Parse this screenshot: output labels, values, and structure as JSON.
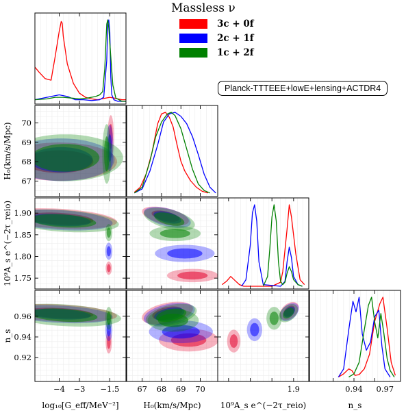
{
  "legend": {
    "title": "Massless ν",
    "entries": [
      {
        "label": "3c + 0f",
        "color": "#ff0000"
      },
      {
        "label": "2c + 1f",
        "color": "#0000ff"
      },
      {
        "label": "1c + 2f",
        "color": "#008000"
      }
    ]
  },
  "dataset_label": "Planck-TTTEEE+lowE+lensing+ACTDR4",
  "colors": {
    "cases": [
      "#ff0000",
      "#0000ff",
      "#008000"
    ],
    "posterior_2d": [
      "#e4002b",
      "#0000ff",
      "#008000"
    ]
  },
  "chart_data": {
    "type": "corner",
    "grid": true,
    "parameters": [
      {
        "name": "log10[Geff/MeV^-2]",
        "label": "log₁₀[G_eff/MeV⁻²]",
        "range": [
          -5.2,
          -0.7
        ],
        "ticks": [
          -4,
          -3,
          -1.5
        ],
        "tick_labels": [
          "−4",
          "−3",
          "−1.5"
        ]
      },
      {
        "name": "H0",
        "label": "H₀(km/s/Mpc)",
        "range": [
          66.2,
          70.9
        ],
        "ticks": [
          67,
          68,
          69,
          70
        ],
        "tick_labels": [
          "67",
          "68",
          "69",
          "70"
        ]
      },
      {
        "name": "1e9 As e^-2tau",
        "label": "10⁹A_s e^(−2τ_reio)",
        "range": [
          1.725,
          1.935
        ],
        "ticks": [
          1.75,
          1.8,
          1.85,
          1.9
        ],
        "tick_labels": [
          "1.75",
          "1.80",
          "1.85",
          "1.90"
        ],
        "bottom_ticks": [
          1.9
        ],
        "bottom_tick_labels": [
          "1.9"
        ]
      },
      {
        "name": "ns",
        "label": "n_s",
        "range": [
          0.897,
          0.985
        ],
        "ticks": [
          0.92,
          0.94,
          0.96
        ],
        "tick_labels": [
          "0.92",
          "0.94",
          "0.96"
        ],
        "bottom_ticks": [
          0.94,
          0.97
        ],
        "bottom_tick_labels": [
          "0.94",
          "0.97"
        ]
      }
    ],
    "series": [
      {
        "name": "3c + 0f",
        "marginals": [
          {
            "x": [
              -5.2,
              -5.0,
              -4.7,
              -4.4,
              -4.2,
              -4.0,
              -3.9,
              -3.85,
              -3.8,
              -3.6,
              -3.3,
              -3.0,
              -2.7,
              -2.4,
              -2.1,
              -1.9,
              -1.7,
              -1.5,
              -1.3,
              -1.1,
              -0.9,
              -0.7
            ],
            "y": [
              0.42,
              0.36,
              0.28,
              0.26,
              0.55,
              0.86,
              0.98,
              0.96,
              0.8,
              0.46,
              0.22,
              0.1,
              0.05,
              0.03,
              0.02,
              0.03,
              0.04,
              0.05,
              0.04,
              0.03,
              0.02,
              0.02
            ]
          },
          {
            "x": [
              66.6,
              66.9,
              67.2,
              67.5,
              67.8,
              68.0,
              68.2,
              68.4,
              68.6,
              68.8,
              69.0,
              69.2,
              69.5,
              69.8,
              70.1,
              70.4
            ],
            "y": [
              0.02,
              0.08,
              0.24,
              0.5,
              0.86,
              0.98,
              1.0,
              0.94,
              0.82,
              0.6,
              0.4,
              0.28,
              0.16,
              0.08,
              0.03,
              0.01
            ]
          },
          {
            "x": [
              1.735,
              1.745,
              1.755,
              1.765,
              1.775,
              1.785,
              1.85,
              1.87,
              1.875,
              1.885,
              1.89,
              1.895,
              1.905,
              1.915,
              1.925
            ],
            "y": [
              0.02,
              0.06,
              0.12,
              0.07,
              0.02,
              0.0,
              0.0,
              0.05,
              0.18,
              0.7,
              1.0,
              0.85,
              0.4,
              0.08,
              0.02
            ]
          },
          {
            "x": [
              0.925,
              0.93,
              0.935,
              0.938,
              0.941,
              0.945,
              0.95,
              0.955,
              0.96,
              0.965,
              0.968,
              0.972,
              0.976,
              0.98
            ],
            "y": [
              0.02,
              0.06,
              0.12,
              0.1,
              0.04,
              0.05,
              0.12,
              0.3,
              0.7,
              0.92,
              1.0,
              0.62,
              0.2,
              0.04
            ]
          }
        ],
        "contours": [
          {
            "x": 0,
            "y": 1,
            "c": [
              -4.0,
              68.0
            ],
            "s": [
              1.3,
              0.45
            ],
            "rho": 0.0
          },
          {
            "x": 0,
            "y": 1,
            "c": [
              -1.45,
              69.3
            ],
            "s": [
              0.07,
              0.5
            ],
            "rho": 0.0
          },
          {
            "x": 0,
            "y": 2,
            "c": [
              -4.0,
              1.887
            ],
            "s": [
              1.3,
              0.011
            ],
            "rho": -0.3
          },
          {
            "x": 0,
            "y": 2,
            "c": [
              -1.55,
              1.773
            ],
            "s": [
              0.07,
              0.007
            ],
            "rho": 0.0
          },
          {
            "x": 1,
            "y": 2,
            "c": [
              68.2,
              1.893
            ],
            "s": [
              0.55,
              0.01
            ],
            "rho": -0.5
          },
          {
            "x": 1,
            "y": 2,
            "c": [
              69.6,
              1.756
            ],
            "s": [
              0.6,
              0.007
            ],
            "rho": 0.0
          },
          {
            "x": 0,
            "y": 3,
            "c": [
              -4.0,
              0.963
            ],
            "s": [
              1.3,
              0.004
            ],
            "rho": -0.3
          },
          {
            "x": 0,
            "y": 3,
            "c": [
              -1.55,
              0.935
            ],
            "s": [
              0.07,
              0.005
            ],
            "rho": 0.0
          },
          {
            "x": 1,
            "y": 3,
            "c": [
              68.3,
              0.963
            ],
            "s": [
              0.6,
              0.005
            ],
            "rho": 0.4
          },
          {
            "x": 1,
            "y": 3,
            "c": [
              69.4,
              0.937
            ],
            "s": [
              0.7,
              0.005
            ],
            "rho": 0.0
          },
          {
            "x": 2,
            "y": 3,
            "c": [
              1.89,
              0.965
            ],
            "s": [
              0.01,
              0.004
            ],
            "rho": 0.4
          },
          {
            "x": 2,
            "y": 3,
            "c": [
              1.762,
              0.936
            ],
            "s": [
              0.007,
              0.005
            ],
            "rho": 0.0
          }
        ]
      },
      {
        "name": "2c + 1f",
        "marginals": [
          {
            "x": [
              -5.2,
              -4.8,
              -4.4,
              -4.0,
              -3.6,
              -3.2,
              -2.8,
              -2.4,
              -2.0,
              -1.8,
              -1.65,
              -1.6,
              -1.55,
              -1.5,
              -1.45,
              -1.4,
              -1.3,
              -1.1,
              -0.7
            ],
            "y": [
              0.02,
              0.04,
              0.06,
              0.08,
              0.06,
              0.02,
              0.02,
              0.01,
              0.02,
              0.05,
              0.5,
              0.95,
              1.0,
              0.85,
              0.3,
              0.08,
              0.02,
              0.0,
              0.0
            ]
          },
          {
            "x": [
              66.6,
              67.0,
              67.4,
              67.8,
              68.1,
              68.4,
              68.7,
              69.0,
              69.3,
              69.6,
              69.9,
              70.2,
              70.5,
              70.8
            ],
            "y": [
              0.01,
              0.06,
              0.28,
              0.6,
              0.88,
              0.98,
              1.0,
              0.95,
              0.86,
              0.7,
              0.48,
              0.24,
              0.08,
              0.01
            ]
          },
          {
            "x": [
              1.78,
              1.79,
              1.8,
              1.805,
              1.81,
              1.815,
              1.82,
              1.83,
              1.87,
              1.88,
              1.885,
              1.89,
              1.895,
              1.9,
              1.91,
              1.92
            ],
            "y": [
              0.0,
              0.08,
              0.5,
              0.9,
              1.0,
              0.8,
              0.3,
              0.02,
              0.0,
              0.06,
              0.3,
              0.48,
              0.35,
              0.12,
              0.02,
              0.0
            ]
          },
          {
            "x": [
              0.925,
              0.93,
              0.935,
              0.939,
              0.942,
              0.945,
              0.948,
              0.952,
              0.956,
              0.96,
              0.964,
              0.967,
              0.97,
              0.975
            ],
            "y": [
              0.02,
              0.12,
              0.6,
              0.95,
              0.82,
              1.0,
              0.55,
              0.35,
              0.45,
              0.76,
              0.84,
              0.4,
              0.12,
              0.02
            ]
          }
        ],
        "contours": [
          {
            "x": 0,
            "y": 1,
            "c": [
              -3.9,
              68.1
            ],
            "s": [
              1.2,
              0.5
            ],
            "rho": 0.0
          },
          {
            "x": 0,
            "y": 1,
            "c": [
              -1.5,
              68.7
            ],
            "s": [
              0.08,
              0.55
            ],
            "rho": 0.0
          },
          {
            "x": 0,
            "y": 2,
            "c": [
              -4.0,
              1.884
            ],
            "s": [
              1.2,
              0.011
            ],
            "rho": -0.3
          },
          {
            "x": 0,
            "y": 2,
            "c": [
              -1.55,
              1.812
            ],
            "s": [
              0.08,
              0.009
            ],
            "rho": 0.0
          },
          {
            "x": 1,
            "y": 2,
            "c": [
              68.3,
              1.89
            ],
            "s": [
              0.55,
              0.011
            ],
            "rho": -0.5
          },
          {
            "x": 1,
            "y": 2,
            "c": [
              69.2,
              1.807
            ],
            "s": [
              0.7,
              0.009
            ],
            "rho": 0.0
          },
          {
            "x": 0,
            "y": 3,
            "c": [
              -4.0,
              0.962
            ],
            "s": [
              1.2,
              0.004
            ],
            "rho": -0.3
          },
          {
            "x": 0,
            "y": 3,
            "c": [
              -1.55,
              0.947
            ],
            "s": [
              0.08,
              0.005
            ],
            "rho": 0.0
          },
          {
            "x": 1,
            "y": 3,
            "c": [
              68.4,
              0.962
            ],
            "s": [
              0.6,
              0.005
            ],
            "rho": 0.4
          },
          {
            "x": 1,
            "y": 3,
            "c": [
              69.0,
              0.945
            ],
            "s": [
              0.75,
              0.005
            ],
            "rho": 0.0
          },
          {
            "x": 2,
            "y": 3,
            "c": [
              1.89,
              0.964
            ],
            "s": [
              0.01,
              0.004
            ],
            "rho": 0.4
          },
          {
            "x": 2,
            "y": 3,
            "c": [
              1.81,
              0.947
            ],
            "s": [
              0.008,
              0.005
            ],
            "rho": 0.0
          }
        ]
      },
      {
        "name": "1c + 2f",
        "marginals": [
          {
            "x": [
              -5.2,
              -4.6,
              -4.2,
              -3.8,
              -3.4,
              -3.0,
              -2.6,
              -2.2,
              -2.0,
              -1.85,
              -1.75,
              -1.65,
              -1.6,
              -1.55,
              -1.45,
              -1.35,
              -1.2,
              -0.9,
              -0.7
            ],
            "y": [
              0.02,
              0.03,
              0.05,
              0.05,
              0.04,
              0.03,
              0.04,
              0.06,
              0.08,
              0.12,
              0.4,
              0.95,
              1.0,
              0.9,
              0.55,
              0.2,
              0.04,
              0.0,
              0.0
            ]
          },
          {
            "x": [
              66.6,
              67.0,
              67.4,
              67.7,
              68.0,
              68.3,
              68.5,
              68.7,
              69.0,
              69.3,
              69.6,
              69.9,
              70.2,
              70.5
            ],
            "y": [
              0.01,
              0.08,
              0.4,
              0.7,
              0.88,
              0.98,
              1.0,
              0.96,
              0.8,
              0.55,
              0.3,
              0.12,
              0.04,
              0.01
            ]
          },
          {
            "x": [
              1.83,
              1.84,
              1.845,
              1.85,
              1.855,
              1.86,
              1.865,
              1.87,
              1.875,
              1.88,
              1.885,
              1.89,
              1.895,
              1.9,
              1.91,
              1.92
            ],
            "y": [
              0.0,
              0.12,
              0.45,
              0.85,
              1.0,
              0.8,
              0.3,
              0.06,
              0.02,
              0.05,
              0.16,
              0.24,
              0.18,
              0.08,
              0.02,
              0.0
            ]
          },
          {
            "x": [
              0.935,
              0.94,
              0.945,
              0.95,
              0.954,
              0.957,
              0.96,
              0.963,
              0.966,
              0.969,
              0.972,
              0.975,
              0.979
            ],
            "y": [
              0.02,
              0.06,
              0.2,
              0.6,
              0.9,
              1.0,
              0.7,
              0.5,
              0.8,
              0.55,
              0.25,
              0.1,
              0.02
            ]
          }
        ],
        "contours": [
          {
            "x": 0,
            "y": 1,
            "c": [
              -3.7,
              68.2
            ],
            "s": [
              1.3,
              0.55
            ],
            "rho": 0.0
          },
          {
            "x": 0,
            "y": 1,
            "c": [
              -1.65,
              68.4
            ],
            "s": [
              0.1,
              0.7
            ],
            "rho": 0.0
          },
          {
            "x": 0,
            "y": 2,
            "c": [
              -3.8,
              1.882
            ],
            "s": [
              1.25,
              0.012
            ],
            "rho": -0.3
          },
          {
            "x": 0,
            "y": 2,
            "c": [
              -1.55,
              1.855
            ],
            "s": [
              0.08,
              0.009
            ],
            "rho": 0.0
          },
          {
            "x": 1,
            "y": 2,
            "c": [
              68.4,
              1.886
            ],
            "s": [
              0.6,
              0.012
            ],
            "rho": -0.5
          },
          {
            "x": 1,
            "y": 2,
            "c": [
              68.7,
              1.853
            ],
            "s": [
              0.6,
              0.008
            ],
            "rho": 0.0
          },
          {
            "x": 0,
            "y": 3,
            "c": [
              -3.8,
              0.961
            ],
            "s": [
              1.3,
              0.005
            ],
            "rho": -0.3
          },
          {
            "x": 0,
            "y": 3,
            "c": [
              -1.55,
              0.958
            ],
            "s": [
              0.08,
              0.005
            ],
            "rho": 0.0
          },
          {
            "x": 1,
            "y": 3,
            "c": [
              68.5,
              0.961
            ],
            "s": [
              0.6,
              0.005
            ],
            "rho": 0.4
          },
          {
            "x": 1,
            "y": 3,
            "c": [
              68.6,
              0.956
            ],
            "s": [
              0.6,
              0.005
            ],
            "rho": 0.0
          },
          {
            "x": 2,
            "y": 3,
            "c": [
              1.888,
              0.963
            ],
            "s": [
              0.01,
              0.004
            ],
            "rho": 0.4
          },
          {
            "x": 2,
            "y": 3,
            "c": [
              1.855,
              0.958
            ],
            "s": [
              0.008,
              0.005
            ],
            "rho": 0.0
          }
        ]
      }
    ]
  }
}
